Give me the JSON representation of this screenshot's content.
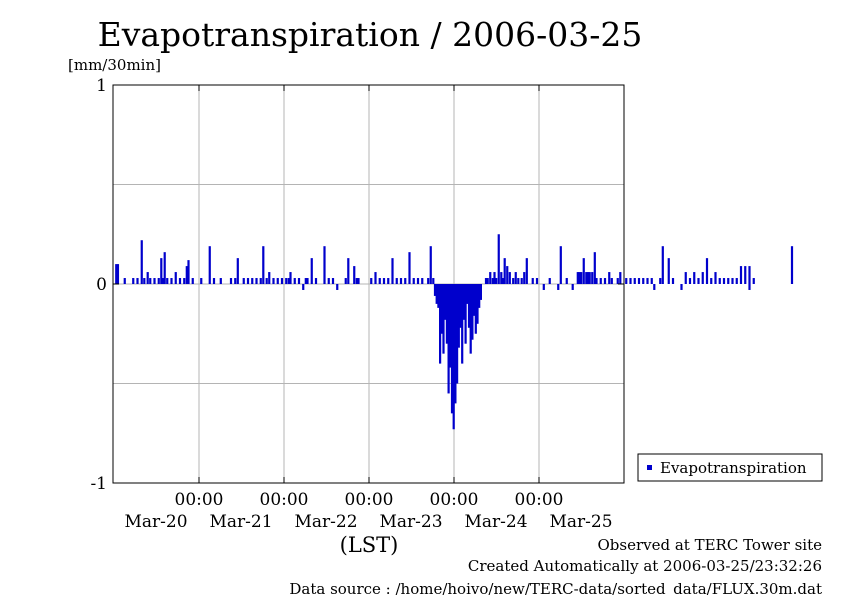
{
  "chart_data": {
    "type": "bar",
    "title": "Evapotranspiration / 2006-03-25",
    "ylabel": "[mm/30min]",
    "xlabel": "(LST)",
    "ylim": [
      -1,
      1
    ],
    "yticks": [
      "1",
      "0",
      "-1"
    ],
    "grid": true,
    "time_labels": [
      "00:00",
      "00:00",
      "00:00",
      "00:00",
      "00:00"
    ],
    "date_labels": [
      "Mar-20",
      "Mar-21",
      "Mar-22",
      "Mar-23",
      "Mar-24",
      "Mar-25"
    ],
    "legend": {
      "position": "bottom-right",
      "entries": [
        "Evapotranspiration"
      ]
    },
    "series": [
      {
        "name": "Evapotranspiration",
        "color": "#0000cc",
        "points": [
          [
            -1.95,
            0.1
          ],
          [
            -1.93,
            0.1
          ],
          [
            -1.85,
            0.03
          ],
          [
            -1.75,
            0.03
          ],
          [
            -1.7,
            0.03
          ],
          [
            -1.65,
            0.22
          ],
          [
            -1.62,
            0.03
          ],
          [
            -1.58,
            0.06
          ],
          [
            -1.55,
            0.03
          ],
          [
            -1.5,
            0.03
          ],
          [
            -1.45,
            0.03
          ],
          [
            -1.42,
            0.13
          ],
          [
            -1.4,
            0.03
          ],
          [
            -1.38,
            0.16
          ],
          [
            -1.35,
            0.03
          ],
          [
            -1.3,
            0.03
          ],
          [
            -1.25,
            0.06
          ],
          [
            -1.2,
            0.03
          ],
          [
            -1.15,
            0.03
          ],
          [
            -1.12,
            0.09
          ],
          [
            -1.1,
            0.12
          ],
          [
            -1.05,
            0.03
          ],
          [
            -0.95,
            0.03
          ],
          [
            -0.85,
            0.19
          ],
          [
            -0.8,
            0.03
          ],
          [
            -0.72,
            0.03
          ],
          [
            -0.6,
            0.03
          ],
          [
            -0.55,
            0.03
          ],
          [
            -0.52,
            0.13
          ],
          [
            -0.45,
            0.03
          ],
          [
            -0.4,
            0.03
          ],
          [
            -0.35,
            0.03
          ],
          [
            -0.3,
            0.03
          ],
          [
            -0.25,
            0.03
          ],
          [
            -0.22,
            0.19
          ],
          [
            -0.18,
            0.03
          ],
          [
            -0.15,
            0.06
          ],
          [
            -0.1,
            0.03
          ],
          [
            -0.05,
            0.03
          ],
          [
            0.0,
            0.03
          ],
          [
            0.05,
            0.03
          ],
          [
            0.08,
            0.03
          ],
          [
            0.1,
            0.06
          ],
          [
            0.15,
            0.03
          ],
          [
            0.2,
            0.03
          ],
          [
            0.25,
            -0.03
          ],
          [
            0.28,
            0.03
          ],
          [
            0.3,
            0.03
          ],
          [
            0.35,
            0.13
          ],
          [
            0.4,
            0.03
          ],
          [
            0.5,
            0.19
          ],
          [
            0.55,
            0.03
          ],
          [
            0.6,
            0.03
          ],
          [
            0.65,
            -0.03
          ],
          [
            0.75,
            0.03
          ],
          [
            0.78,
            0.13
          ],
          [
            0.85,
            0.09
          ],
          [
            0.88,
            0.03
          ],
          [
            0.9,
            0.03
          ],
          [
            1.05,
            0.03
          ],
          [
            1.1,
            0.06
          ],
          [
            1.15,
            0.03
          ],
          [
            1.2,
            0.03
          ],
          [
            1.25,
            0.03
          ],
          [
            1.3,
            0.13
          ],
          [
            1.35,
            0.03
          ],
          [
            1.4,
            0.03
          ],
          [
            1.45,
            0.03
          ],
          [
            1.5,
            0.16
          ],
          [
            1.55,
            0.03
          ],
          [
            1.6,
            0.03
          ],
          [
            1.65,
            0.03
          ],
          [
            1.72,
            0.03
          ],
          [
            1.75,
            0.19
          ],
          [
            1.78,
            0.03
          ],
          [
            1.8,
            -0.06
          ],
          [
            1.82,
            -0.1
          ],
          [
            1.84,
            -0.12
          ],
          [
            1.86,
            -0.4
          ],
          [
            1.88,
            -0.25
          ],
          [
            1.9,
            -0.35
          ],
          [
            1.92,
            -0.18
          ],
          [
            1.94,
            -0.3
          ],
          [
            1.96,
            -0.55
          ],
          [
            1.98,
            -0.42
          ],
          [
            2.0,
            -0.65
          ],
          [
            2.02,
            -0.73
          ],
          [
            2.04,
            -0.6
          ],
          [
            2.06,
            -0.5
          ],
          [
            2.08,
            -0.32
          ],
          [
            2.1,
            -0.22
          ],
          [
            2.12,
            -0.4
          ],
          [
            2.14,
            -0.18
          ],
          [
            2.16,
            -0.3
          ],
          [
            2.18,
            -0.1
          ],
          [
            2.2,
            -0.22
          ],
          [
            2.22,
            -0.35
          ],
          [
            2.24,
            -0.28
          ],
          [
            2.26,
            -0.16
          ],
          [
            2.28,
            -0.25
          ],
          [
            2.3,
            -0.2
          ],
          [
            2.32,
            -0.12
          ],
          [
            2.34,
            -0.08
          ],
          [
            2.4,
            0.03
          ],
          [
            2.42,
            0.03
          ],
          [
            2.45,
            0.06
          ],
          [
            2.48,
            0.03
          ],
          [
            2.5,
            0.06
          ],
          [
            2.52,
            0.03
          ],
          [
            2.55,
            0.25
          ],
          [
            2.58,
            0.06
          ],
          [
            2.6,
            0.03
          ],
          [
            2.62,
            0.13
          ],
          [
            2.65,
            0.09
          ],
          [
            2.68,
            0.06
          ],
          [
            2.72,
            0.03
          ],
          [
            2.75,
            0.06
          ],
          [
            2.78,
            0.03
          ],
          [
            2.82,
            0.03
          ],
          [
            2.85,
            0.06
          ],
          [
            2.88,
            0.13
          ],
          [
            2.95,
            0.03
          ],
          [
            3.0,
            0.03
          ],
          [
            3.08,
            -0.03
          ],
          [
            3.15,
            0.03
          ],
          [
            3.25,
            -0.03
          ],
          [
            3.28,
            0.19
          ],
          [
            3.35,
            0.03
          ],
          [
            3.42,
            -0.03
          ],
          [
            3.48,
            0.06
          ],
          [
            3.5,
            0.06
          ],
          [
            3.52,
            0.06
          ],
          [
            3.55,
            0.13
          ],
          [
            3.58,
            0.06
          ],
          [
            3.6,
            0.06
          ],
          [
            3.62,
            0.06
          ],
          [
            3.65,
            0.06
          ],
          [
            3.68,
            0.16
          ],
          [
            3.7,
            0.03
          ],
          [
            3.75,
            0.03
          ],
          [
            3.8,
            0.03
          ],
          [
            3.85,
            0.06
          ],
          [
            3.88,
            0.03
          ],
          [
            3.95,
            0.03
          ],
          [
            3.98,
            0.06
          ],
          [
            4.05,
            0.03
          ],
          [
            4.1,
            0.03
          ],
          [
            4.15,
            0.03
          ],
          [
            4.2,
            0.03
          ],
          [
            4.25,
            0.03
          ],
          [
            4.3,
            0.03
          ],
          [
            4.35,
            0.03
          ],
          [
            4.38,
            -0.03
          ],
          [
            4.45,
            0.03
          ],
          [
            4.48,
            0.19
          ],
          [
            4.55,
            0.13
          ],
          [
            4.6,
            0.03
          ],
          [
            4.7,
            -0.03
          ],
          [
            4.75,
            0.06
          ],
          [
            4.8,
            0.03
          ],
          [
            4.85,
            0.06
          ],
          [
            4.9,
            0.03
          ],
          [
            4.95,
            0.06
          ],
          [
            5.0,
            0.13
          ],
          [
            5.05,
            0.03
          ],
          [
            5.1,
            0.06
          ],
          [
            5.15,
            0.03
          ],
          [
            5.2,
            0.03
          ],
          [
            5.25,
            0.03
          ],
          [
            5.3,
            0.03
          ],
          [
            5.35,
            0.03
          ],
          [
            5.4,
            0.09
          ],
          [
            5.45,
            0.09
          ],
          [
            5.5,
            -0.03
          ],
          [
            5.5,
            0.09
          ],
          [
            5.55,
            0.03
          ],
          [
            6.0,
            0.19
          ]
        ]
      }
    ]
  },
  "footer": {
    "line1": "Observed at TERC Tower site",
    "line2": "Created Automatically at 2006-03-25/23:32:26",
    "line3": "Data source : /home/hoivo/new/TERC-data/sorted_data/FLUX.30m.dat"
  }
}
